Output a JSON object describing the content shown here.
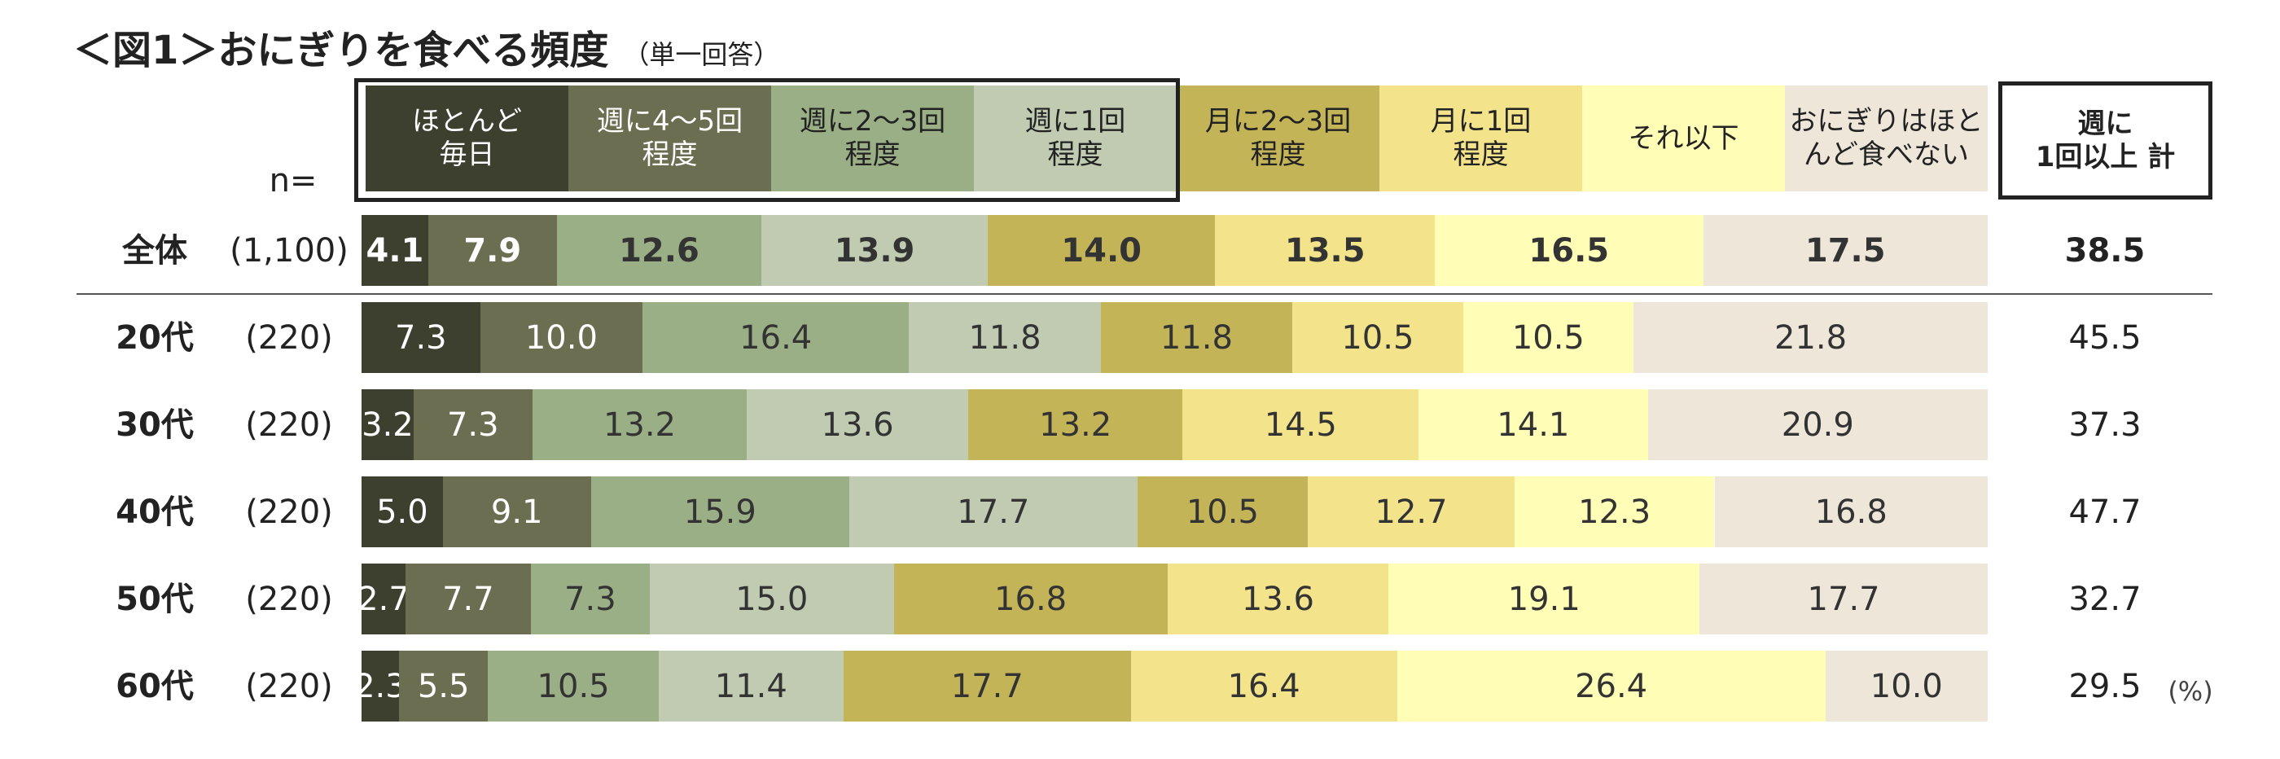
{
  "chart_data": {
    "type": "bar",
    "stacked": true,
    "orientation": "horizontal",
    "title": "＜図1＞おにぎりを食べる頻度",
    "subtitle": "（単一回答）",
    "n_label": "n=",
    "categories": [
      "全体",
      "20代",
      "30代",
      "40代",
      "50代",
      "60代"
    ],
    "n_values": [
      "(1,100)",
      "(220)",
      "(220)",
      "(220)",
      "(220)",
      "(220)"
    ],
    "unit": "(%)",
    "series": [
      {
        "name": "ほとんど\n毎日",
        "color": "#3d3f2f",
        "values": [
          4.1,
          7.3,
          3.2,
          5.0,
          2.7,
          2.3
        ],
        "value_labels": [
          "4.1",
          "7.3",
          "3.2",
          "5.0",
          "2.7",
          "2.3"
        ]
      },
      {
        "name": "週に4～5回\n程度",
        "color": "#6b6e50",
        "values": [
          7.9,
          10.0,
          7.3,
          9.1,
          7.7,
          5.5
        ],
        "value_labels": [
          "7.9",
          "10.0",
          "7.3",
          "9.1",
          "7.7",
          "5.5"
        ]
      },
      {
        "name": "週に2～3回\n程度",
        "color": "#9aaf86",
        "values": [
          12.6,
          16.4,
          13.2,
          15.9,
          7.3,
          10.5
        ],
        "value_labels": [
          "12.6",
          "16.4",
          "13.2",
          "15.9",
          "7.3",
          "10.5"
        ]
      },
      {
        "name": "週に1回\n程度",
        "color": "#c0cbb2",
        "values": [
          13.9,
          11.8,
          13.6,
          17.7,
          15.0,
          11.4
        ],
        "value_labels": [
          "13.9",
          "11.8",
          "13.6",
          "17.7",
          "15.0",
          "11.4"
        ]
      },
      {
        "name": "月に2～3回\n程度",
        "color": "#c4b458",
        "values": [
          14.0,
          11.8,
          13.2,
          10.5,
          16.8,
          17.7
        ],
        "value_labels": [
          "14.0",
          "11.8",
          "13.2",
          "10.5",
          "16.8",
          "17.7"
        ]
      },
      {
        "name": "月に1回\n程度",
        "color": "#f3e48c",
        "values": [
          13.5,
          10.5,
          14.5,
          12.7,
          13.6,
          16.4
        ],
        "value_labels": [
          "13.5",
          "10.5",
          "14.5",
          "12.7",
          "13.6",
          "16.4"
        ]
      },
      {
        "name": "それ以下",
        "color": "#fffdb6",
        "values": [
          16.5,
          10.5,
          14.1,
          12.3,
          19.1,
          26.4
        ],
        "value_labels": [
          "16.5",
          "10.5",
          "14.1",
          "12.3",
          "19.1",
          "26.4"
        ]
      },
      {
        "name": "おにぎりはほと\nんど食べない",
        "color": "#efe6da",
        "values": [
          17.5,
          21.8,
          20.9,
          16.8,
          17.7,
          10.0
        ],
        "value_labels": [
          "17.5",
          "21.8",
          "20.9",
          "16.8",
          "17.7",
          "10.0"
        ]
      }
    ],
    "totals": {
      "name": "週に\n1回以上 計",
      "values": [
        38.5,
        45.5,
        37.3,
        47.7,
        32.7,
        29.5
      ],
      "value_labels": [
        "38.5",
        "45.5",
        "37.3",
        "47.7",
        "32.7",
        "29.5"
      ]
    }
  }
}
